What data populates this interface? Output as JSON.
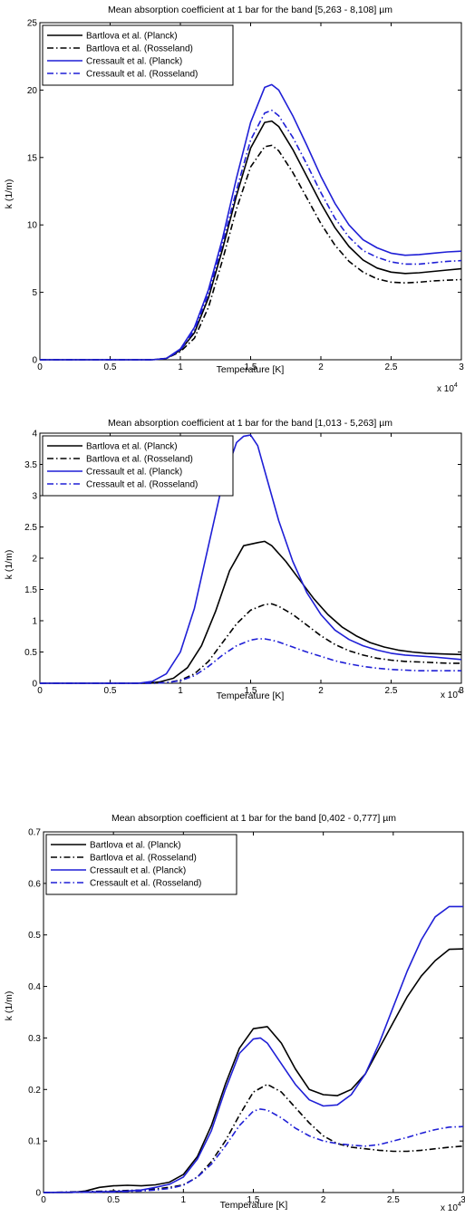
{
  "chart_data": [
    {
      "type": "line",
      "title": "Mean absorption coefficient at 1 bar for the band [5,263 - 8,108] µm",
      "xlabel": "Temperature [K]",
      "ylabel": "k (1/m)",
      "x_multiplier": "x 10",
      "x_exponent": "4",
      "xlim": [
        0,
        3
      ],
      "ylim": [
        0,
        25
      ],
      "xticks": [
        0,
        0.5,
        1,
        1.5,
        2,
        2.5,
        3
      ],
      "xtick_labels": [
        "0",
        "0.5",
        "1",
        "1.5",
        "2",
        "2.5",
        "3"
      ],
      "yticks": [
        0,
        5,
        10,
        15,
        20,
        25
      ],
      "ytick_labels": [
        "0",
        "5",
        "10",
        "15",
        "20",
        "25"
      ],
      "legend_position": "top-left",
      "series": [
        {
          "name": "Bartlova et al. (Planck)",
          "color": "#000000",
          "dash": "solid",
          "x": [
            0,
            0.8,
            0.9,
            1.0,
            1.1,
            1.2,
            1.3,
            1.4,
            1.5,
            1.6,
            1.65,
            1.7,
            1.8,
            1.9,
            2.0,
            2.1,
            2.2,
            2.3,
            2.4,
            2.5,
            2.6,
            2.7,
            2.8,
            2.9,
            3.0
          ],
          "y": [
            0,
            0,
            0.1,
            0.7,
            2.0,
            4.6,
            8.2,
            12.2,
            15.7,
            17.6,
            17.7,
            17.3,
            15.6,
            13.6,
            11.6,
            9.8,
            8.4,
            7.4,
            6.8,
            6.5,
            6.4,
            6.45,
            6.55,
            6.65,
            6.75
          ]
        },
        {
          "name": "Bartlova et al. (Rosseland)",
          "color": "#000000",
          "dash": "dashdot",
          "x": [
            0,
            0.8,
            0.9,
            1.0,
            1.1,
            1.2,
            1.3,
            1.4,
            1.5,
            1.6,
            1.65,
            1.7,
            1.8,
            1.9,
            2.0,
            2.1,
            2.2,
            2.3,
            2.4,
            2.5,
            2.6,
            2.7,
            2.8,
            2.9,
            3.0
          ],
          "y": [
            0,
            0,
            0.1,
            0.6,
            1.6,
            3.9,
            7.4,
            11.2,
            14.3,
            15.8,
            15.9,
            15.5,
            13.9,
            12.0,
            10.1,
            8.5,
            7.3,
            6.5,
            6.0,
            5.75,
            5.7,
            5.75,
            5.85,
            5.9,
            5.95
          ]
        },
        {
          "name": "Cressault et al. (Planck)",
          "color": "#1f1fd6",
          "dash": "solid",
          "x": [
            0,
            0.8,
            0.9,
            1.0,
            1.1,
            1.2,
            1.3,
            1.4,
            1.5,
            1.6,
            1.65,
            1.7,
            1.8,
            1.9,
            2.0,
            2.1,
            2.2,
            2.3,
            2.4,
            2.5,
            2.6,
            2.7,
            2.8,
            2.9,
            3.0
          ],
          "y": [
            0,
            0,
            0.1,
            0.8,
            2.4,
            5.2,
            9.0,
            13.5,
            17.6,
            20.2,
            20.4,
            20.0,
            18.1,
            15.9,
            13.6,
            11.6,
            10.0,
            8.9,
            8.3,
            7.9,
            7.75,
            7.8,
            7.9,
            8.0,
            8.05
          ]
        },
        {
          "name": "Cressault et al. (Rosseland)",
          "color": "#1f1fd6",
          "dash": "dashdot",
          "x": [
            0,
            0.8,
            0.9,
            1.0,
            1.1,
            1.2,
            1.3,
            1.4,
            1.5,
            1.6,
            1.65,
            1.7,
            1.8,
            1.9,
            2.0,
            2.1,
            2.2,
            2.3,
            2.4,
            2.5,
            2.6,
            2.7,
            2.8,
            2.9,
            3.0
          ],
          "y": [
            0,
            0,
            0.1,
            0.7,
            2.2,
            4.9,
            8.6,
            12.6,
            16.3,
            18.3,
            18.5,
            18.1,
            16.5,
            14.5,
            12.4,
            10.5,
            9.1,
            8.1,
            7.6,
            7.25,
            7.1,
            7.1,
            7.2,
            7.3,
            7.35
          ]
        }
      ]
    },
    {
      "type": "line",
      "title": "Mean absorption coefficient at 1 bar for the band [1,013 - 5,263] µm",
      "xlabel": "Temperature [K]",
      "ylabel": "k (1/m)",
      "x_multiplier": "x 10",
      "x_exponent": "4",
      "xlim": [
        0,
        3
      ],
      "ylim": [
        0,
        4
      ],
      "xticks": [
        0,
        0.5,
        1,
        1.5,
        2,
        2.5,
        3
      ],
      "xtick_labels": [
        "0",
        "0.5",
        "1",
        "1.5",
        "2",
        "2.5",
        "3"
      ],
      "yticks": [
        0,
        0.5,
        1,
        1.5,
        2,
        2.5,
        3,
        3.5,
        4
      ],
      "ytick_labels": [
        "0",
        "0.5",
        "1",
        "1.5",
        "2",
        "2.5",
        "3",
        "3.5",
        "4"
      ],
      "legend_position": "top-left",
      "series": [
        {
          "name": "Bartlova et al. (Planck)",
          "color": "#000000",
          "dash": "solid",
          "x": [
            0,
            0.75,
            0.85,
            0.95,
            1.05,
            1.15,
            1.25,
            1.35,
            1.45,
            1.55,
            1.6,
            1.65,
            1.75,
            1.85,
            1.95,
            2.05,
            2.15,
            2.25,
            2.35,
            2.45,
            2.55,
            2.65,
            2.75,
            2.85,
            3.0
          ],
          "y": [
            0,
            0,
            0.02,
            0.08,
            0.25,
            0.6,
            1.15,
            1.8,
            2.2,
            2.25,
            2.27,
            2.2,
            1.95,
            1.65,
            1.35,
            1.1,
            0.9,
            0.76,
            0.65,
            0.58,
            0.53,
            0.5,
            0.48,
            0.47,
            0.46
          ]
        },
        {
          "name": "Bartlova et al. (Rosseland)",
          "color": "#000000",
          "dash": "dashdot",
          "x": [
            0,
            0.8,
            0.9,
            1.0,
            1.1,
            1.2,
            1.3,
            1.4,
            1.5,
            1.6,
            1.65,
            1.7,
            1.8,
            1.9,
            2.0,
            2.1,
            2.2,
            2.3,
            2.4,
            2.5,
            2.6,
            2.7,
            2.8,
            2.9,
            3.0
          ],
          "y": [
            0,
            0,
            0.01,
            0.05,
            0.15,
            0.35,
            0.65,
            0.95,
            1.17,
            1.26,
            1.27,
            1.23,
            1.1,
            0.93,
            0.76,
            0.62,
            0.52,
            0.45,
            0.4,
            0.37,
            0.35,
            0.34,
            0.33,
            0.32,
            0.32
          ]
        },
        {
          "name": "Cressault et al. (Planck)",
          "color": "#1f1fd6",
          "dash": "solid",
          "x": [
            0,
            0.7,
            0.8,
            0.9,
            1.0,
            1.1,
            1.2,
            1.3,
            1.4,
            1.45,
            1.5,
            1.55,
            1.6,
            1.7,
            1.8,
            1.9,
            2.0,
            2.1,
            2.2,
            2.3,
            2.4,
            2.5,
            2.6,
            2.8,
            3.0
          ],
          "y": [
            0,
            0,
            0.03,
            0.15,
            0.5,
            1.2,
            2.2,
            3.2,
            3.85,
            3.95,
            3.97,
            3.8,
            3.4,
            2.6,
            1.95,
            1.45,
            1.1,
            0.85,
            0.7,
            0.6,
            0.53,
            0.48,
            0.45,
            0.42,
            0.38
          ]
        },
        {
          "name": "Cressault et al. (Rosseland)",
          "color": "#1f1fd6",
          "dash": "dashdot",
          "x": [
            0,
            0.8,
            0.9,
            1.0,
            1.1,
            1.2,
            1.3,
            1.4,
            1.5,
            1.55,
            1.6,
            1.65,
            1.7,
            1.8,
            1.9,
            2.0,
            2.1,
            2.2,
            2.3,
            2.4,
            2.5,
            2.6,
            2.7,
            2.85,
            3.0
          ],
          "y": [
            0,
            0,
            0.01,
            0.04,
            0.12,
            0.27,
            0.45,
            0.6,
            0.69,
            0.71,
            0.71,
            0.69,
            0.66,
            0.58,
            0.5,
            0.43,
            0.36,
            0.31,
            0.27,
            0.24,
            0.22,
            0.21,
            0.2,
            0.2,
            0.2
          ]
        }
      ]
    },
    {
      "type": "line",
      "title": "Mean absorption coefficient at 1 bar for the band [0,402 - 0,777] µm",
      "xlabel": "Temperature [K]",
      "ylabel": "k (1/m)",
      "x_multiplier": "x 10",
      "x_exponent": "4",
      "xlim": [
        0,
        3
      ],
      "ylim": [
        0,
        0.7
      ],
      "xticks": [
        0,
        0.5,
        1,
        1.5,
        2,
        2.5,
        3
      ],
      "xtick_labels": [
        "0",
        "0.5",
        "1",
        "1.5",
        "2",
        "2.5",
        "3"
      ],
      "yticks": [
        0,
        0.1,
        0.2,
        0.3,
        0.4,
        0.5,
        0.6,
        0.7
      ],
      "ytick_labels": [
        "0",
        "0.1",
        "0.2",
        "0.3",
        "0.4",
        "0.5",
        "0.6",
        "0.7"
      ],
      "legend_position": "top-left",
      "series": [
        {
          "name": "Bartlova et al. (Planck)",
          "color": "#000000",
          "dash": "solid",
          "x": [
            0,
            0.2,
            0.3,
            0.4,
            0.5,
            0.6,
            0.7,
            0.8,
            0.9,
            1.0,
            1.1,
            1.2,
            1.3,
            1.4,
            1.5,
            1.6,
            1.7,
            1.8,
            1.9,
            2.0,
            2.1,
            2.2,
            2.3,
            2.4,
            2.5,
            2.6,
            2.7,
            2.8,
            2.9,
            3.0
          ],
          "y": [
            0,
            0,
            0.003,
            0.01,
            0.013,
            0.014,
            0.013,
            0.015,
            0.02,
            0.035,
            0.07,
            0.13,
            0.21,
            0.28,
            0.318,
            0.322,
            0.29,
            0.24,
            0.2,
            0.19,
            0.188,
            0.2,
            0.23,
            0.28,
            0.33,
            0.38,
            0.42,
            0.45,
            0.472,
            0.473
          ]
        },
        {
          "name": "Bartlova et al. (Rosseland)",
          "color": "#000000",
          "dash": "dashdot",
          "x": [
            0,
            0.5,
            0.7,
            0.8,
            0.9,
            1.0,
            1.1,
            1.2,
            1.3,
            1.4,
            1.5,
            1.6,
            1.7,
            1.8,
            1.9,
            2.0,
            2.1,
            2.2,
            2.3,
            2.4,
            2.5,
            2.6,
            2.7,
            2.8,
            2.9,
            3.0
          ],
          "y": [
            0,
            0.003,
            0.005,
            0.007,
            0.01,
            0.015,
            0.03,
            0.06,
            0.1,
            0.15,
            0.195,
            0.21,
            0.195,
            0.165,
            0.135,
            0.11,
            0.095,
            0.088,
            0.085,
            0.082,
            0.08,
            0.08,
            0.082,
            0.085,
            0.088,
            0.09
          ]
        },
        {
          "name": "Cressault et al. (Planck)",
          "color": "#1f1fd6",
          "dash": "solid",
          "x": [
            0,
            0.5,
            0.6,
            0.7,
            0.8,
            0.9,
            1.0,
            1.1,
            1.2,
            1.3,
            1.4,
            1.5,
            1.55,
            1.6,
            1.7,
            1.8,
            1.9,
            2.0,
            2.1,
            2.2,
            2.3,
            2.4,
            2.5,
            2.6,
            2.7,
            2.8,
            2.9,
            3.0
          ],
          "y": [
            0,
            0.002,
            0.003,
            0.005,
            0.01,
            0.016,
            0.03,
            0.065,
            0.12,
            0.2,
            0.27,
            0.298,
            0.3,
            0.29,
            0.25,
            0.21,
            0.18,
            0.168,
            0.17,
            0.19,
            0.23,
            0.29,
            0.36,
            0.43,
            0.49,
            0.535,
            0.555,
            0.555
          ]
        },
        {
          "name": "Cressault et al. (Rosseland)",
          "color": "#1f1fd6",
          "dash": "dashdot",
          "x": [
            0,
            0.5,
            0.7,
            0.8,
            0.9,
            1.0,
            1.1,
            1.2,
            1.3,
            1.4,
            1.5,
            1.55,
            1.6,
            1.7,
            1.8,
            1.9,
            2.0,
            2.1,
            2.2,
            2.3,
            2.4,
            2.5,
            2.6,
            2.7,
            2.8,
            2.9,
            3.0
          ],
          "y": [
            0,
            0.001,
            0.003,
            0.005,
            0.008,
            0.014,
            0.03,
            0.055,
            0.09,
            0.13,
            0.158,
            0.162,
            0.16,
            0.145,
            0.125,
            0.11,
            0.1,
            0.095,
            0.092,
            0.09,
            0.093,
            0.1,
            0.107,
            0.115,
            0.122,
            0.127,
            0.128
          ]
        }
      ]
    }
  ]
}
